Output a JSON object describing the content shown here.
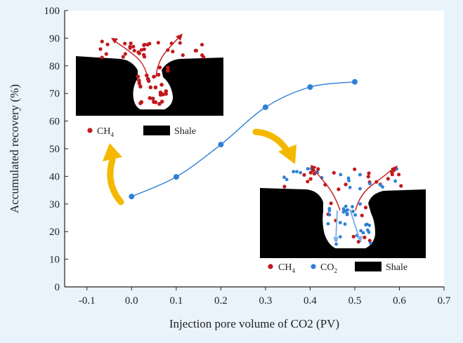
{
  "chart_data": {
    "type": "line",
    "xlabel": "Injection pore volume of CO2  (PV)",
    "ylabel": "Accumulated recovery (%)",
    "xlim": [
      -0.15,
      0.7
    ],
    "ylim": [
      0,
      100
    ],
    "x_ticks": [
      "-0.1",
      "0.0",
      "0.1",
      "0.2",
      "0.3",
      "0.4",
      "0.5",
      "0.6",
      "0.7"
    ],
    "y_ticks": [
      "0",
      "10",
      "20",
      "30",
      "40",
      "50",
      "60",
      "70",
      "80",
      "90",
      "100"
    ],
    "series": [
      {
        "color": "#2f7fd6",
        "x": [
          0.0,
          0.1,
          0.2,
          0.3,
          0.4,
          0.5
        ],
        "y": [
          32.7,
          39.8,
          51.5,
          65.0,
          72.3,
          74.2
        ]
      }
    ],
    "grid": false
  },
  "insets": {
    "left": {
      "legend_ch4": "CH",
      "legend_ch4_sub": "4",
      "legend_shale": "Shale"
    },
    "right": {
      "legend_ch4": "CH",
      "legend_ch4_sub": "4",
      "legend_co2": "CO",
      "legend_co2_sub": "2",
      "legend_shale": "Shale"
    }
  },
  "colors": {
    "background": "#e8f3fb",
    "methane_dot": "#c0191c",
    "co2_dot": "#2f7fd6",
    "shale": "#000000",
    "arrow": "#f5b800",
    "line": "#2f7fd6"
  }
}
